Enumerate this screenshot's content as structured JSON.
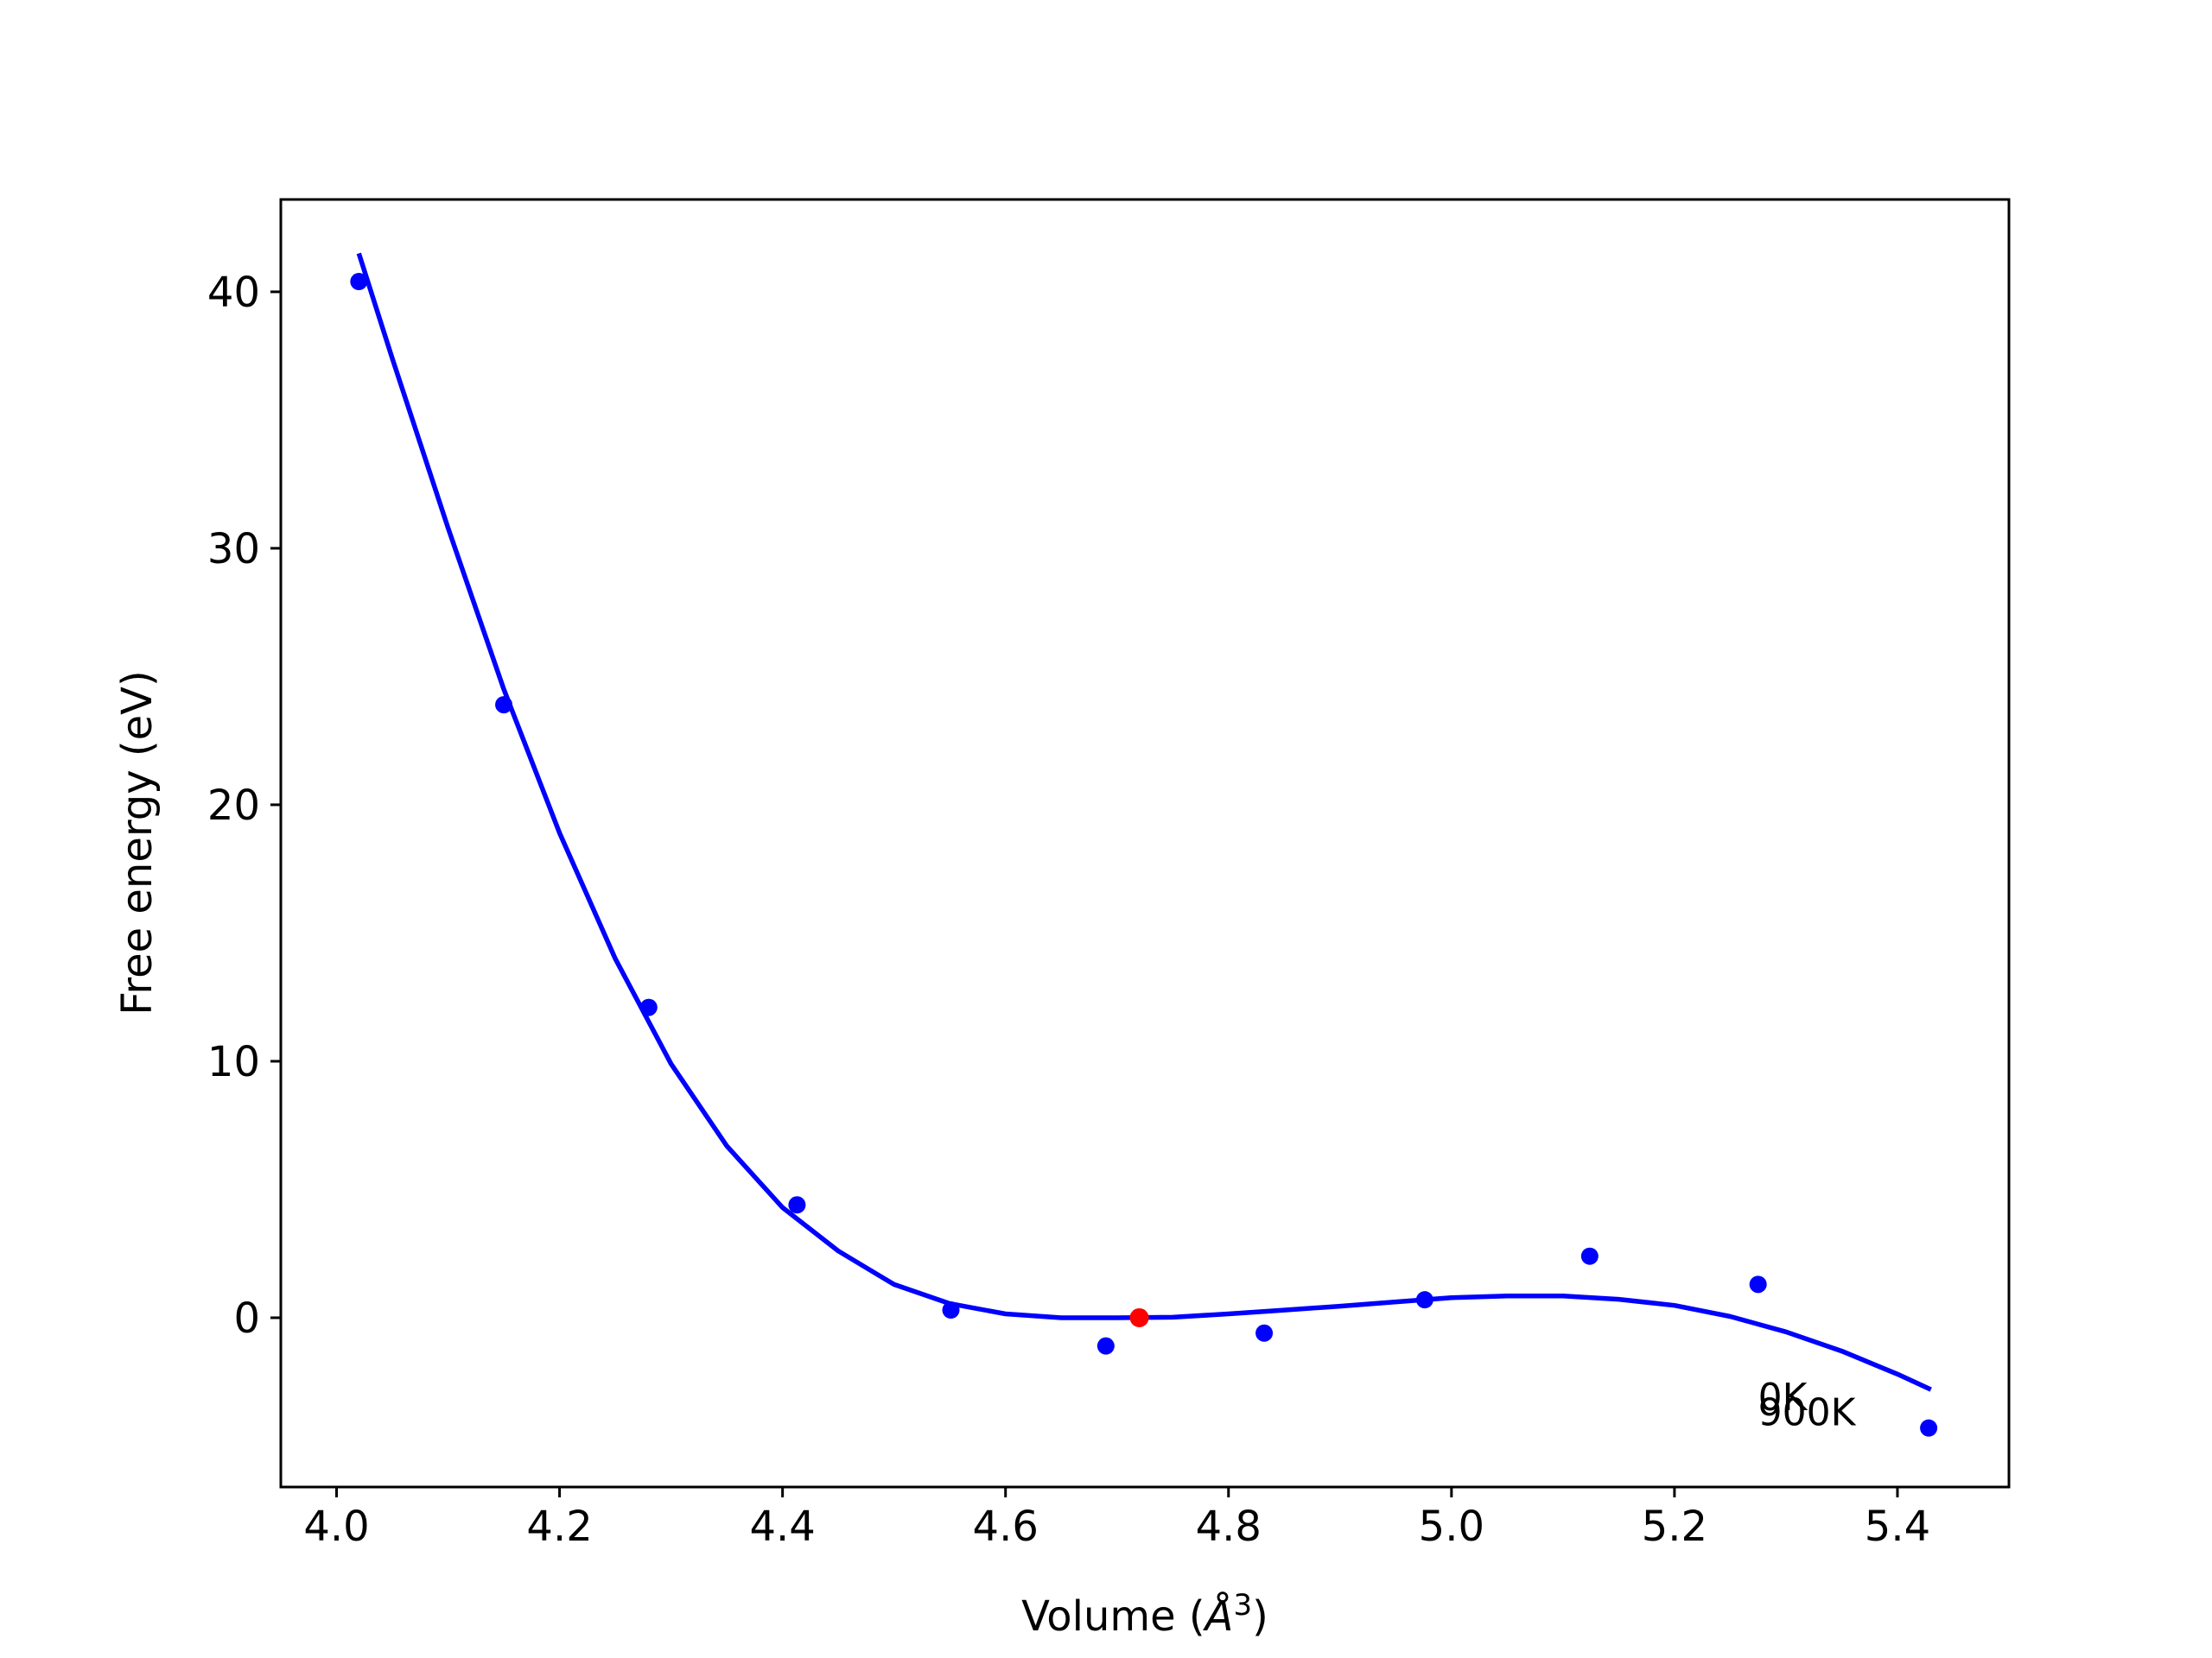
{
  "chart_data": {
    "type": "scatter",
    "title": "",
    "xlabel_prefix": "Volume (",
    "xlabel_symbol": "Å",
    "xlabel_exp": "3",
    "xlabel_suffix": ")",
    "ylabel": "Free energy (eV)",
    "xlim": [
      3.95,
      5.5
    ],
    "ylim": [
      -6.6,
      43.6
    ],
    "xticks": [
      4.0,
      4.2,
      4.4,
      4.6,
      4.8,
      5.0,
      5.2,
      5.4
    ],
    "xtick_labels": [
      "4.0",
      "4.2",
      "4.4",
      "4.6",
      "4.8",
      "5.0",
      "5.2",
      "5.4"
    ],
    "yticks": [
      0,
      10,
      20,
      30,
      40
    ],
    "ytick_labels": [
      "0",
      "10",
      "20",
      "30",
      "40"
    ],
    "grid": false,
    "points": {
      "color": "#0000ff",
      "x": [
        4.02,
        4.15,
        4.28,
        4.413,
        4.551,
        4.69,
        4.832,
        4.976,
        5.124,
        5.275,
        5.428
      ],
      "y": [
        40.4,
        23.9,
        12.1,
        4.4,
        0.3,
        -1.1,
        -0.6,
        0.7,
        2.4,
        1.3,
        -4.3
      ]
    },
    "minimum_point": {
      "color": "#ff0000",
      "x": 4.72,
      "y": 0.0
    },
    "fit_curve": {
      "color": "#0000ff",
      "x": [
        4.02,
        4.05,
        4.1,
        4.15,
        4.2,
        4.25,
        4.3,
        4.35,
        4.4,
        4.45,
        4.5,
        4.55,
        4.6,
        4.65,
        4.7,
        4.75,
        4.8,
        4.85,
        4.9,
        4.95,
        5.0,
        5.05,
        5.1,
        5.15,
        5.2,
        5.25,
        5.3,
        5.35,
        5.4,
        5.43
      ],
      "y": [
        41.5,
        37.4,
        30.8,
        24.5,
        18.9,
        14.0,
        9.9,
        6.7,
        4.3,
        2.6,
        1.3,
        0.55,
        0.15,
        0.0,
        0.0,
        0.02,
        0.15,
        0.3,
        0.45,
        0.62,
        0.78,
        0.85,
        0.85,
        0.72,
        0.48,
        0.05,
        -0.55,
        -1.3,
        -2.2,
        -2.8
      ]
    },
    "annotations": [
      {
        "text": "0K",
        "x": 5.275,
        "y": -3.6
      },
      {
        "text": "900K",
        "x": 5.275,
        "y": -4.2
      }
    ]
  }
}
